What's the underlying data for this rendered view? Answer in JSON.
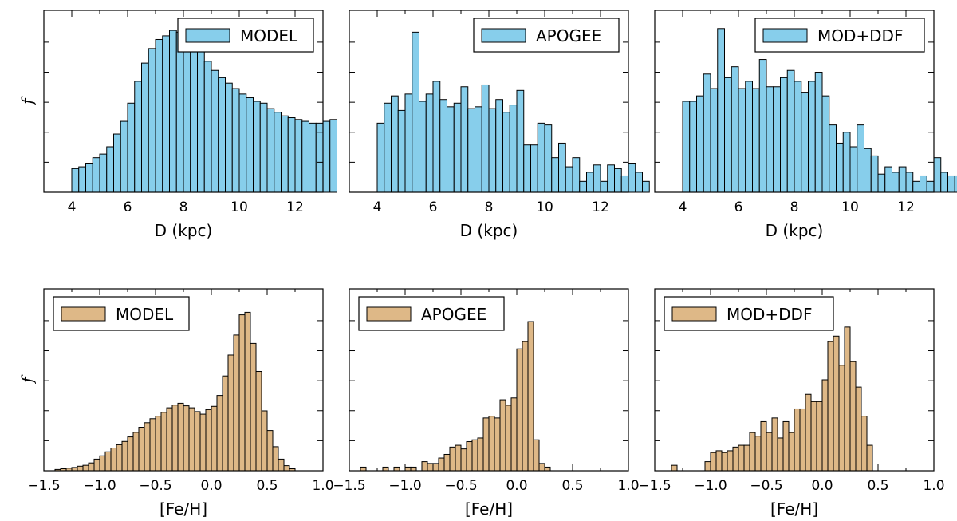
{
  "chart_data": [
    {
      "type": "bar",
      "xlabel": "D (kpc)",
      "ylabel": "f",
      "xlim": [
        3,
        13
      ],
      "ylim": [
        0,
        1.0
      ],
      "xticks": [
        4,
        6,
        8,
        10,
        12
      ],
      "color": "#87ceeb",
      "legend": "MODEL",
      "legend_position": "top-right",
      "bin_start": 4.0,
      "bin_width": 0.25,
      "values": [
        0.13,
        0.14,
        0.16,
        0.19,
        0.21,
        0.25,
        0.32,
        0.39,
        0.49,
        0.61,
        0.71,
        0.79,
        0.84,
        0.86,
        0.89,
        0.88,
        0.86,
        0.83,
        0.78,
        0.72,
        0.67,
        0.63,
        0.6,
        0.57,
        0.54,
        0.52,
        0.5,
        0.49,
        0.46,
        0.44,
        0.42,
        0.41,
        0.4,
        0.39,
        0.38,
        0.38,
        0.39,
        0.4
      ]
    },
    {
      "type": "bar",
      "xlabel": "D (kpc)",
      "ylabel": "",
      "xlim": [
        3,
        13
      ],
      "ylim": [
        0,
        1.0
      ],
      "xticks": [
        4,
        6,
        8,
        10,
        12
      ],
      "color": "#87ceeb",
      "legend": "APOGEE",
      "legend_position": "top-right",
      "bin_start": 4.0,
      "bin_width": 0.25,
      "values": [
        0.38,
        0.49,
        0.53,
        0.45,
        0.54,
        0.88,
        0.5,
        0.54,
        0.61,
        0.51,
        0.47,
        0.49,
        0.58,
        0.46,
        0.47,
        0.59,
        0.46,
        0.51,
        0.44,
        0.48,
        0.56,
        0.26,
        0.26,
        0.38,
        0.37,
        0.19,
        0.27,
        0.14,
        0.19,
        0.06,
        0.11,
        0.15,
        0.06,
        0.15,
        0.13,
        0.09,
        0.16,
        0.11,
        0.06
      ]
    },
    {
      "type": "bar",
      "xlabel": "D (kpc)",
      "ylabel": "",
      "xlim": [
        3,
        13
      ],
      "ylim": [
        0,
        1.0
      ],
      "xticks": [
        4,
        6,
        8,
        10,
        12
      ],
      "color": "#87ceeb",
      "legend": "MOD+DDF",
      "legend_position": "top-right",
      "bin_start": 4.0,
      "bin_width": 0.25,
      "values": [
        0.5,
        0.5,
        0.53,
        0.65,
        0.57,
        0.9,
        0.63,
        0.69,
        0.57,
        0.61,
        0.57,
        0.73,
        0.58,
        0.58,
        0.63,
        0.67,
        0.61,
        0.55,
        0.61,
        0.66,
        0.53,
        0.37,
        0.27,
        0.33,
        0.25,
        0.37,
        0.24,
        0.2,
        0.1,
        0.14,
        0.11,
        0.14,
        0.11,
        0.06,
        0.09,
        0.06,
        0.19,
        0.11,
        0.09,
        0.09
      ]
    },
    {
      "type": "bar",
      "xlabel": "[Fe/H]",
      "ylabel": "f",
      "xlim": [
        -1.5,
        1.0
      ],
      "ylim": [
        0,
        1.0
      ],
      "xticks": [
        -1.5,
        -1.0,
        -0.5,
        0.0,
        0.5,
        1.0
      ],
      "xtick_labels": [
        "−1.5",
        "−1.0",
        "−0.5",
        "0.0",
        "0.5",
        "1.0"
      ],
      "color": "#deb887",
      "legend": "MODEL",
      "legend_position": "top-left",
      "bin_start": -1.4,
      "bin_width": 0.05,
      "values": [
        0.007,
        0.011,
        0.014,
        0.018,
        0.025,
        0.03,
        0.043,
        0.064,
        0.082,
        0.104,
        0.125,
        0.143,
        0.161,
        0.186,
        0.211,
        0.239,
        0.264,
        0.286,
        0.3,
        0.321,
        0.346,
        0.361,
        0.371,
        0.357,
        0.346,
        0.325,
        0.311,
        0.336,
        0.354,
        0.414,
        0.521,
        0.636,
        0.746,
        0.857,
        0.871,
        0.7,
        0.546,
        0.329,
        0.221,
        0.132,
        0.064,
        0.028,
        0.011
      ]
    },
    {
      "type": "bar",
      "xlabel": "[Fe/H]",
      "ylabel": "",
      "xlim": [
        -1.5,
        1.0
      ],
      "ylim": [
        0,
        1.0
      ],
      "xticks": [
        -1.5,
        -1.0,
        -0.5,
        0.0,
        0.5,
        1.0
      ],
      "xtick_labels": [
        "−1.5",
        "−1.0",
        "−0.5",
        "0.0",
        "0.5",
        "1.0"
      ],
      "color": "#deb887",
      "legend": "APOGEE",
      "legend_position": "top-left",
      "bin_start": -1.4,
      "bin_width": 0.05,
      "values": [
        0.02,
        0,
        0,
        0,
        0.02,
        0,
        0.02,
        0,
        0.02,
        0.02,
        0,
        0.05,
        0.04,
        0.04,
        0.07,
        0.09,
        0.13,
        0.14,
        0.12,
        0.16,
        0.17,
        0.18,
        0.29,
        0.3,
        0.29,
        0.39,
        0.36,
        0.4,
        0.67,
        0.71,
        0.82,
        0.17,
        0.04,
        0.02
      ]
    },
    {
      "type": "bar",
      "xlabel": "[Fe/H]",
      "ylabel": "",
      "xlim": [
        -1.5,
        1.0
      ],
      "ylim": [
        0,
        1.0
      ],
      "xticks": [
        -1.5,
        -1.0,
        -0.5,
        0.0,
        0.5,
        1.0
      ],
      "xtick_labels": [
        "−1.5",
        "−1.0",
        "−0.5",
        "0.0",
        "0.5",
        "1.0"
      ],
      "color": "#deb887",
      "legend": "MOD+DDF",
      "legend_position": "top-left",
      "bin_start": -1.35,
      "bin_width": 0.05,
      "values": [
        0.03,
        0,
        0,
        0,
        0,
        0,
        0.05,
        0.1,
        0.11,
        0.1,
        0.11,
        0.13,
        0.14,
        0.14,
        0.21,
        0.19,
        0.27,
        0.21,
        0.29,
        0.18,
        0.27,
        0.21,
        0.34,
        0.34,
        0.42,
        0.38,
        0.38,
        0.5,
        0.71,
        0.74,
        0.58,
        0.79,
        0.6,
        0.46,
        0.3,
        0.14
      ]
    }
  ]
}
